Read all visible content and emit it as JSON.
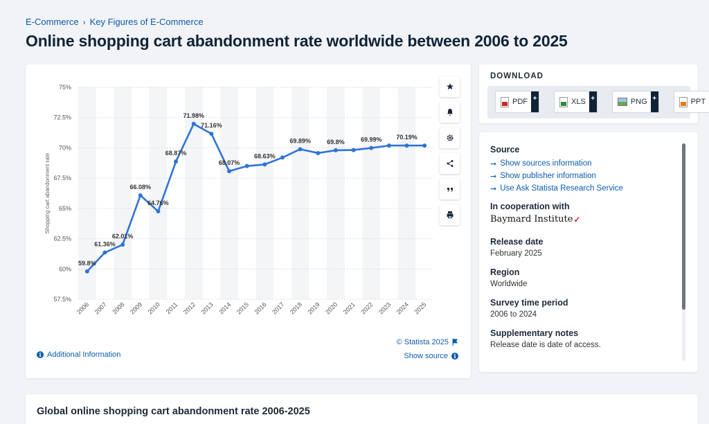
{
  "breadcrumb": {
    "items": [
      "E-Commerce",
      "Key Figures of E-Commerce"
    ],
    "separator": "›"
  },
  "page_title": "Online shopping cart abandonment rate worldwide between 2006 to 2025",
  "chart_tools": {
    "icons": [
      "star-icon",
      "bell-icon",
      "gear-icon",
      "share-icon",
      "quote-icon",
      "print-icon"
    ]
  },
  "chart_footer": {
    "additional_info": "Additional Information",
    "copyright": "© Statista 2025",
    "show_source": "Show source"
  },
  "download": {
    "title": "DOWNLOAD",
    "buttons": [
      {
        "label": "PDF",
        "icon": "pdf-icon"
      },
      {
        "label": "XLS",
        "icon": "xls-icon"
      },
      {
        "label": "PNG",
        "icon": "png-icon"
      },
      {
        "label": "PPT",
        "icon": "ppt-icon"
      }
    ],
    "plus": "+"
  },
  "info": {
    "source_label": "Source",
    "source_links": [
      "Show sources information",
      "Show publisher information",
      "Use Ask Statista Research Service"
    ],
    "cooperation_label": "In cooperation with",
    "cooperation_partner": "Baymard Institute",
    "release_label": "Release date",
    "release_value": "February 2025",
    "region_label": "Region",
    "region_value": "Worldwide",
    "survey_label": "Survey time period",
    "survey_value": "2006 to 2024",
    "notes_label": "Supplementary notes",
    "notes_value": "Release date is date of access."
  },
  "bottom_title": "Global online shopping cart abandonment rate 2006-2025",
  "colors": {
    "accent": "#0b5cad",
    "line": "#2f74d6",
    "title": "#0f2337"
  },
  "chart_data": {
    "type": "line",
    "title": "",
    "xlabel": "",
    "ylabel": "Shopping cart abandonment rate",
    "x": [
      "2006",
      "2007",
      "2008",
      "2009",
      "2010",
      "2011",
      "2012",
      "2013",
      "2014",
      "2015",
      "2016",
      "2017",
      "2018",
      "2019",
      "2020",
      "2021",
      "2022",
      "2023",
      "2024",
      "2025"
    ],
    "values": [
      59.8,
      61.36,
      62.01,
      66.08,
      64.76,
      68.87,
      71.98,
      71.16,
      68.07,
      68.5,
      68.63,
      69.2,
      69.89,
      69.57,
      69.8,
      69.82,
      69.99,
      70.19,
      70.19,
      70.19
    ],
    "value_labels": [
      "59.8%",
      "61.36%",
      "62.01%",
      "66.08%",
      "64.76%",
      "68.87%",
      "71.98%",
      "71.16%",
      "68.07%",
      "",
      "68.63%",
      "",
      "69.89%",
      "",
      "69.8%",
      "",
      "69.99%",
      "",
      "70.19%",
      ""
    ],
    "ylim": [
      57.5,
      75
    ],
    "yticks": [
      "57.5%",
      "60%",
      "62.5%",
      "65%",
      "67.5%",
      "70%",
      "72.5%",
      "75%"
    ],
    "ytick_values": [
      57.5,
      60,
      62.5,
      65,
      67.5,
      70,
      72.5,
      75
    ],
    "grid": true,
    "legend": "none"
  }
}
